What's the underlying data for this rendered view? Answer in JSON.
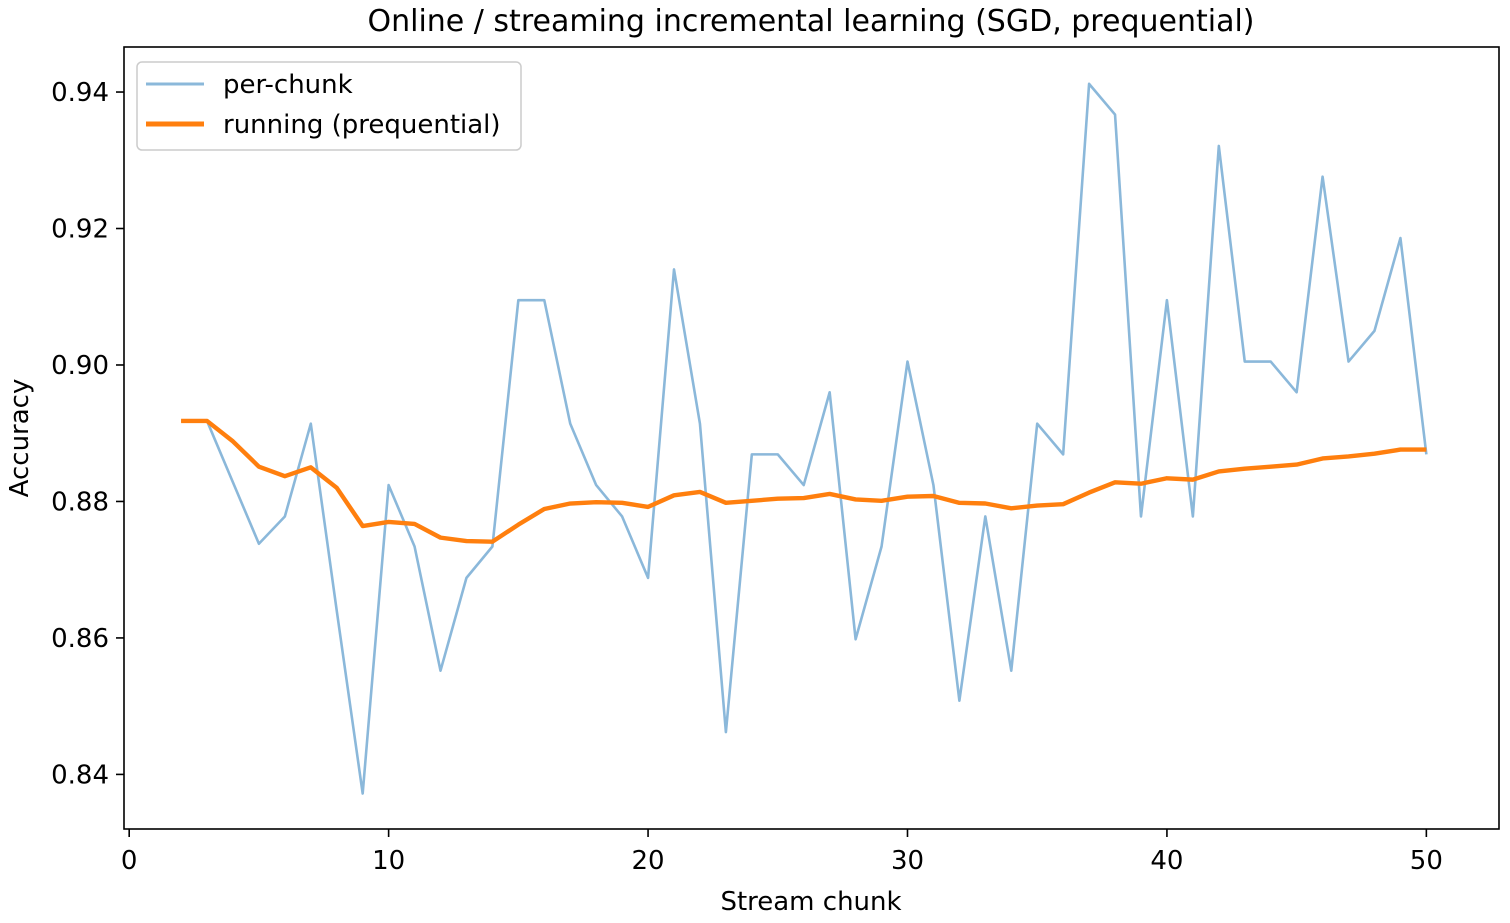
{
  "chart_data": {
    "type": "line",
    "title": "Online / streaming incremental learning (SGD, prequential)",
    "xlabel": "Stream chunk",
    "ylabel": "Accuracy",
    "xlim": [
      -0.2,
      52.8
    ],
    "ylim": [
      0.832,
      0.9466
    ],
    "xticks": [
      0,
      10,
      20,
      30,
      40,
      50
    ],
    "xtick_labels": [
      "0",
      "10",
      "20",
      "30",
      "40",
      "50"
    ],
    "yticks": [
      0.84,
      0.86,
      0.88,
      0.9,
      0.92,
      0.94
    ],
    "ytick_labels": [
      "0.84",
      "0.86",
      "0.88",
      "0.90",
      "0.92",
      "0.94"
    ],
    "grid": false,
    "legend_position": "upper-left",
    "x": [
      2,
      3,
      4,
      5,
      6,
      7,
      8,
      9,
      10,
      11,
      12,
      13,
      14,
      15,
      16,
      17,
      18,
      19,
      20,
      21,
      22,
      23,
      24,
      25,
      26,
      27,
      28,
      29,
      30,
      31,
      32,
      33,
      34,
      35,
      36,
      37,
      38,
      39,
      40,
      41,
      42,
      43,
      44,
      45,
      46,
      47,
      48,
      49,
      50
    ],
    "series": [
      {
        "name": "per-chunk",
        "color": "#8bb8da",
        "values": [
          0.8918,
          0.8918,
          0.8828,
          0.8738,
          0.8778,
          0.8914,
          0.864,
          0.8372,
          0.8824,
          0.8734,
          0.8552,
          0.8688,
          0.8734,
          0.9095,
          0.9095,
          0.8914,
          0.8824,
          0.8778,
          0.8688,
          0.914,
          0.8914,
          0.8462,
          0.8869,
          0.8869,
          0.8824,
          0.896,
          0.8598,
          0.8734,
          0.9005,
          0.8824,
          0.8508,
          0.8778,
          0.8552,
          0.8914,
          0.8869,
          0.9412,
          0.9367,
          0.8778,
          0.9095,
          0.8778,
          0.9321,
          0.9005,
          0.9005,
          0.896,
          0.9276,
          0.9005,
          0.905,
          0.9186,
          0.8869
        ]
      },
      {
        "name": "running (prequential)",
        "color": "#ff7f0e",
        "values": [
          0.8918,
          0.8918,
          0.8888,
          0.8851,
          0.8837,
          0.885,
          0.882,
          0.8764,
          0.877,
          0.8767,
          0.8747,
          0.8742,
          0.8741,
          0.8766,
          0.8789,
          0.8797,
          0.8799,
          0.8798,
          0.8792,
          0.8809,
          0.8814,
          0.8798,
          0.8801,
          0.8804,
          0.8805,
          0.8811,
          0.8803,
          0.8801,
          0.8807,
          0.8808,
          0.8798,
          0.8797,
          0.879,
          0.8794,
          0.8796,
          0.8813,
          0.8828,
          0.8826,
          0.8834,
          0.8832,
          0.8844,
          0.8848,
          0.8851,
          0.8854,
          0.8863,
          0.8866,
          0.887,
          0.8876,
          0.8876
        ]
      }
    ]
  }
}
